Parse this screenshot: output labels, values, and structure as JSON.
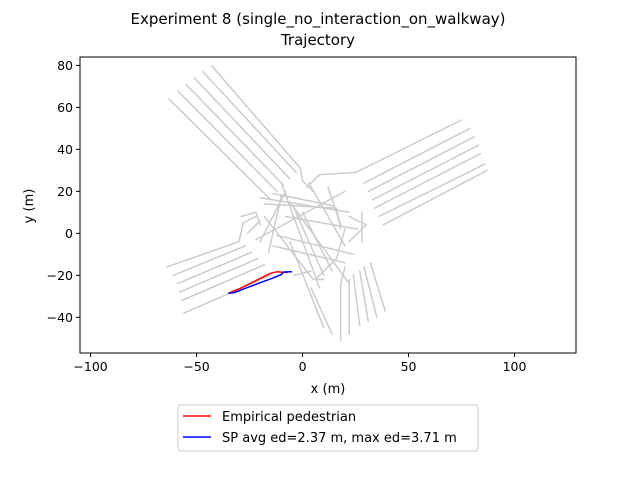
{
  "chart_data": {
    "type": "line",
    "title": "Experiment 8 (single_no_interaction_on_walkway)",
    "subtitle": "Trajectory",
    "xlabel": "x (m)",
    "ylabel": "y (m)",
    "xlim": [
      -105,
      129
    ],
    "ylim": [
      -57,
      84
    ],
    "xticks": [
      -100,
      -50,
      0,
      50,
      100
    ],
    "yticks": [
      -40,
      -20,
      0,
      20,
      40,
      60,
      80
    ],
    "grid": false,
    "legend_position": "bottom-center",
    "background_color": "#cccccc",
    "background_lanes": [
      {
        "points": [
          [
            -63,
            64
          ],
          [
            -15,
            16
          ]
        ]
      },
      {
        "points": [
          [
            -59,
            68
          ],
          [
            -12,
            20
          ]
        ]
      },
      {
        "points": [
          [
            -55,
            71
          ],
          [
            -9,
            23
          ]
        ]
      },
      {
        "points": [
          [
            -51,
            74
          ],
          [
            -6,
            26
          ]
        ]
      },
      {
        "points": [
          [
            -47,
            77
          ],
          [
            -3,
            29
          ]
        ]
      },
      {
        "points": [
          [
            -43,
            80
          ],
          [
            -1,
            31
          ],
          [
            0,
            25
          ],
          [
            5,
            20
          ]
        ]
      },
      {
        "points": [
          [
            -64,
            -16
          ],
          [
            -30,
            -4
          ],
          [
            -28,
            5
          ],
          [
            -22,
            8
          ]
        ]
      },
      {
        "points": [
          [
            -61,
            -20
          ],
          [
            -27,
            -6
          ]
        ]
      },
      {
        "points": [
          [
            -59,
            -24
          ],
          [
            -24,
            -9
          ]
        ]
      },
      {
        "points": [
          [
            -58,
            -28
          ],
          [
            -21,
            -12
          ]
        ]
      },
      {
        "points": [
          [
            -57,
            -32
          ],
          [
            -18,
            -15
          ]
        ]
      },
      {
        "points": [
          [
            -56,
            -38
          ],
          [
            -15,
            -20
          ]
        ]
      },
      {
        "points": [
          [
            -29,
            8
          ],
          [
            -22,
            10
          ],
          [
            -20,
            4
          ]
        ]
      },
      {
        "points": [
          [
            75,
            54
          ],
          [
            25,
            29
          ],
          [
            8,
            28
          ],
          [
            2,
            22
          ]
        ]
      },
      {
        "points": [
          [
            79,
            50
          ],
          [
            29,
            24
          ]
        ]
      },
      {
        "points": [
          [
            81,
            46
          ],
          [
            31,
            20
          ]
        ]
      },
      {
        "points": [
          [
            83,
            42
          ],
          [
            33,
            16
          ]
        ]
      },
      {
        "points": [
          [
            84,
            38
          ],
          [
            34,
            12
          ]
        ]
      },
      {
        "points": [
          [
            86,
            33
          ],
          [
            36,
            8
          ]
        ]
      },
      {
        "points": [
          [
            87,
            30
          ],
          [
            38,
            4
          ]
        ]
      },
      {
        "points": [
          [
            18,
            -51
          ],
          [
            18,
            -24
          ],
          [
            20,
            -16
          ]
        ]
      },
      {
        "points": [
          [
            22,
            -48
          ],
          [
            22,
            -22
          ]
        ]
      },
      {
        "points": [
          [
            27,
            -44
          ],
          [
            24,
            -20
          ]
        ]
      },
      {
        "points": [
          [
            31,
            -42
          ],
          [
            27,
            -18
          ]
        ]
      },
      {
        "points": [
          [
            35,
            -40
          ],
          [
            29,
            -16
          ]
        ]
      },
      {
        "points": [
          [
            39,
            -37
          ],
          [
            32,
            -14
          ]
        ]
      },
      {
        "points": [
          [
            14,
            -48
          ],
          [
            4,
            -26
          ]
        ]
      },
      {
        "points": [
          [
            10,
            -45
          ],
          [
            -6,
            -4
          ]
        ]
      },
      {
        "points": [
          [
            -6,
            15
          ],
          [
            22,
            -24
          ]
        ]
      },
      {
        "points": [
          [
            -20,
            17
          ],
          [
            22,
            10
          ]
        ]
      },
      {
        "points": [
          [
            -22,
            -3
          ],
          [
            20,
            20
          ]
        ]
      },
      {
        "points": [
          [
            -14,
            19
          ],
          [
            15,
            13
          ]
        ]
      },
      {
        "points": [
          [
            -16,
            -9
          ],
          [
            -10,
            18
          ]
        ]
      },
      {
        "points": [
          [
            -20,
            -4
          ],
          [
            -8,
            20
          ]
        ]
      },
      {
        "points": [
          [
            3,
            24
          ],
          [
            20,
            -6
          ]
        ]
      },
      {
        "points": [
          [
            -10,
            24
          ],
          [
            8,
            -26
          ]
        ]
      },
      {
        "points": [
          [
            -18,
            8
          ],
          [
            5,
            -22
          ],
          [
            10,
            -22
          ]
        ]
      },
      {
        "points": [
          [
            20,
            2
          ],
          [
            16,
            -12
          ],
          [
            6,
            -22
          ]
        ]
      },
      {
        "points": [
          [
            22,
            8
          ],
          [
            30,
            4
          ],
          [
            22,
            -4
          ]
        ]
      },
      {
        "points": [
          [
            -18,
            14
          ],
          [
            16,
            12
          ],
          [
            18,
            2
          ]
        ]
      },
      {
        "points": [
          [
            -8,
            8
          ],
          [
            26,
            2
          ]
        ]
      },
      {
        "points": [
          [
            -12,
            -1
          ],
          [
            24,
            -10
          ]
        ]
      },
      {
        "points": [
          [
            -14,
            -6
          ],
          [
            20,
            -14
          ]
        ]
      },
      {
        "points": [
          [
            0,
            10
          ],
          [
            14,
            -18
          ]
        ]
      },
      {
        "points": [
          [
            -4,
            12
          ],
          [
            10,
            -20
          ]
        ]
      },
      {
        "points": [
          [
            12,
            22
          ],
          [
            18,
            4
          ]
        ]
      },
      {
        "points": [
          [
            28,
            10
          ],
          [
            28,
            -4
          ]
        ]
      },
      {
        "points": [
          [
            -26,
            0
          ],
          [
            -20,
            6
          ]
        ]
      },
      {
        "points": [
          [
            -4,
            -20
          ],
          [
            4,
            -18
          ]
        ]
      }
    ],
    "series": [
      {
        "name": "Empirical pedestrian",
        "color": "#ff0000",
        "points": [
          [
            -35,
            -28.5
          ],
          [
            -30,
            -26.5
          ],
          [
            -24,
            -23.5
          ],
          [
            -19,
            -21
          ],
          [
            -15,
            -19
          ],
          [
            -12,
            -18.3
          ],
          [
            -9,
            -18.6
          ],
          [
            -7,
            -18.6
          ]
        ]
      },
      {
        "name": "SP avg ed=2.37 m, max ed=3.71 m",
        "color": "#0000ff",
        "points": [
          [
            -35,
            -28.6
          ],
          [
            -32,
            -28.2
          ],
          [
            -27,
            -26.2
          ],
          [
            -20,
            -23.5
          ],
          [
            -14,
            -21.3
          ],
          [
            -10,
            -19.6
          ],
          [
            -9,
            -18.4
          ],
          [
            -6,
            -18.3
          ],
          [
            -5,
            -18.3
          ]
        ]
      }
    ]
  }
}
